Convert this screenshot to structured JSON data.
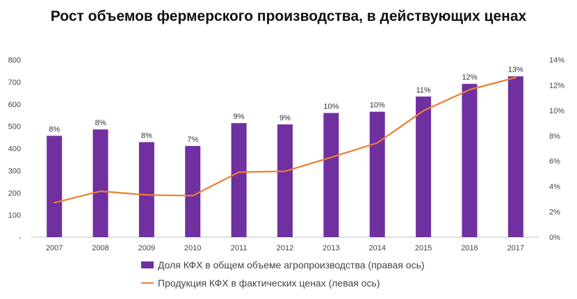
{
  "title": "Рост объемов фермерского производства, в действующих ценах",
  "colors": {
    "bar": "#7030a0",
    "line": "#ed7d31",
    "text": "#444444",
    "axis": "#bfbfbf"
  },
  "chart_data": {
    "type": "bar",
    "title": "Рост объемов фермерского производства, в действующих ценах",
    "categories": [
      "2007",
      "2008",
      "2009",
      "2010",
      "2011",
      "2012",
      "2013",
      "2014",
      "2015",
      "2016",
      "2017"
    ],
    "series": [
      {
        "name": "Доля КФХ в общем объеме агропроизводства (правая ось)",
        "type": "bar",
        "axis": "right",
        "values": [
          8,
          8.5,
          7.5,
          7.2,
          9,
          8.9,
          9.8,
          9.9,
          11.1,
          12.1,
          12.7
        ],
        "labels": [
          "8%",
          "8%",
          "8%",
          "7%",
          "9%",
          "9%",
          "10%",
          "10%",
          "11%",
          "12%",
          "13%"
        ]
      },
      {
        "name": "Продукция КФХ в фактических ценах (левая ось)",
        "type": "line",
        "axis": "left",
        "values": [
          155,
          207,
          190,
          187,
          293,
          297,
          360,
          425,
          570,
          665,
          720
        ]
      }
    ],
    "left_axis": {
      "ylim": [
        0,
        800
      ],
      "ticks": [
        "-",
        "100",
        "200",
        "300",
        "400",
        "500",
        "600",
        "700",
        "800"
      ]
    },
    "right_axis": {
      "ylim": [
        0,
        14
      ],
      "ticks": [
        "0%",
        "2%",
        "4%",
        "6%",
        "8%",
        "10%",
        "12%",
        "14%"
      ]
    },
    "legend_position": "bottom"
  }
}
